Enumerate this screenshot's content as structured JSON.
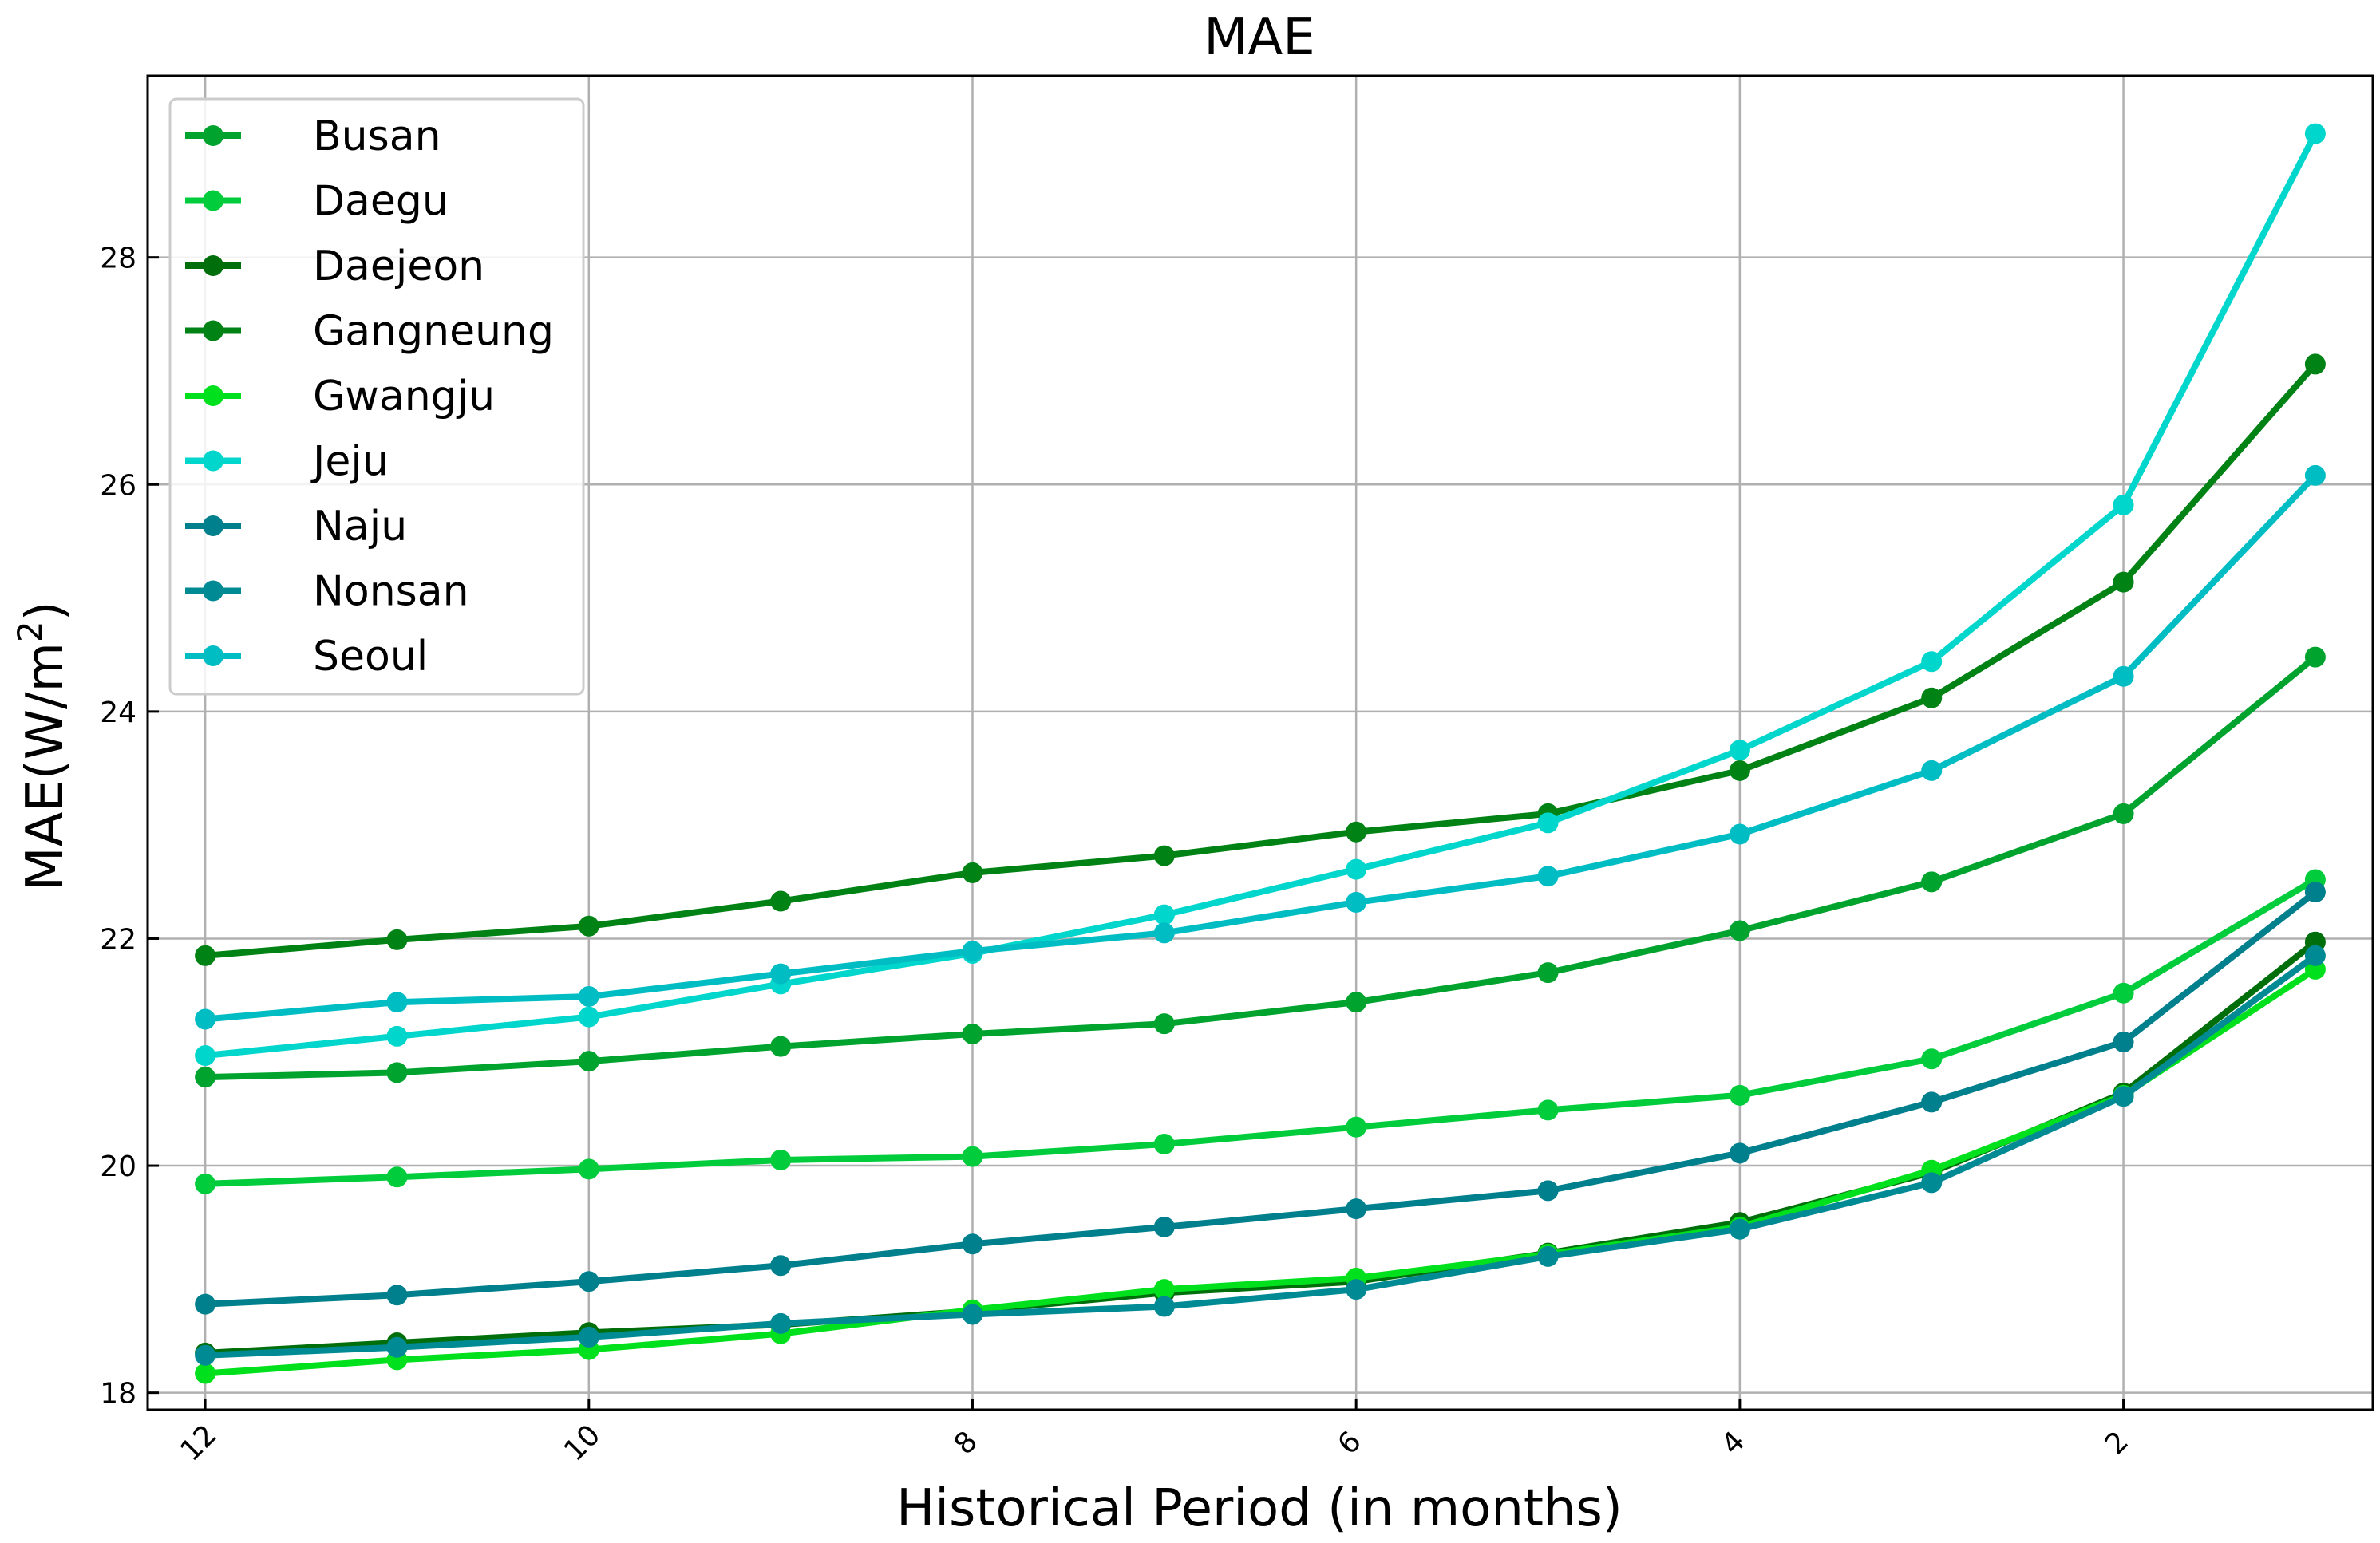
{
  "chart_data": {
    "type": "line",
    "title": "MAE",
    "xlabel": "Historical Period (in months)",
    "ylabel": "MAE(W/m²)",
    "ylabel_base": "MAE(W/m",
    "ylabel_sup": "2",
    "ylabel_close": ")",
    "x": [
      12,
      11,
      10,
      9,
      8,
      7,
      6,
      5,
      4,
      3,
      2,
      1
    ],
    "x_ticks": [
      12,
      10,
      8,
      6,
      4,
      2
    ],
    "x_tick_labels": [
      "12",
      "10",
      "8",
      "6",
      "4",
      "2"
    ],
    "xlim": [
      12.3,
      0.7
    ],
    "x_inverted": true,
    "y_ticks": [
      18,
      20,
      22,
      24,
      26,
      28
    ],
    "y_tick_labels": [
      "18",
      "20",
      "22",
      "24",
      "26",
      "28"
    ],
    "ylim": [
      17.85,
      29.6
    ],
    "grid": true,
    "legend_position": "upper-left",
    "series": [
      {
        "name": "Busan",
        "color": "#00a32e",
        "values": [
          20.78,
          20.82,
          20.92,
          21.05,
          21.16,
          21.25,
          21.44,
          21.7,
          22.07,
          22.5,
          23.1,
          24.48
        ]
      },
      {
        "name": "Daegu",
        "color": "#00cc3c",
        "values": [
          19.84,
          19.9,
          19.97,
          20.05,
          20.08,
          20.19,
          20.34,
          20.49,
          20.62,
          20.94,
          21.52,
          22.52
        ]
      },
      {
        "name": "Daejeon",
        "color": "#006e0b",
        "values": [
          18.35,
          18.44,
          18.53,
          18.6,
          18.72,
          18.88,
          18.98,
          19.23,
          19.5,
          19.94,
          20.64,
          21.97
        ]
      },
      {
        "name": "Gangneung",
        "color": "#008214",
        "values": [
          21.85,
          21.99,
          22.11,
          22.33,
          22.58,
          22.73,
          22.94,
          23.1,
          23.48,
          24.12,
          25.14,
          27.06
        ]
      },
      {
        "name": "Gwangju",
        "color": "#00e01c",
        "values": [
          18.17,
          18.29,
          18.38,
          18.52,
          18.73,
          18.91,
          19.01,
          19.22,
          19.46,
          19.96,
          20.62,
          21.73
        ]
      },
      {
        "name": "Jeju",
        "color": "#00d6cc",
        "values": [
          20.97,
          21.14,
          21.31,
          21.6,
          21.87,
          22.21,
          22.61,
          23.02,
          23.66,
          24.44,
          25.82,
          29.09
        ]
      },
      {
        "name": "Naju",
        "color": "#007f8c",
        "values": [
          18.78,
          18.86,
          18.98,
          19.12,
          19.31,
          19.46,
          19.62,
          19.78,
          20.11,
          20.56,
          21.09,
          22.41
        ]
      },
      {
        "name": "Nonsan",
        "color": "#008a94",
        "values": [
          18.33,
          18.4,
          18.49,
          18.61,
          18.69,
          18.76,
          18.91,
          19.2,
          19.44,
          19.85,
          20.61,
          21.85
        ]
      },
      {
        "name": "Seoul",
        "color": "#00bdc4",
        "values": [
          21.29,
          21.44,
          21.49,
          21.69,
          21.89,
          22.05,
          22.32,
          22.55,
          22.92,
          23.48,
          24.31,
          26.08
        ]
      }
    ]
  }
}
